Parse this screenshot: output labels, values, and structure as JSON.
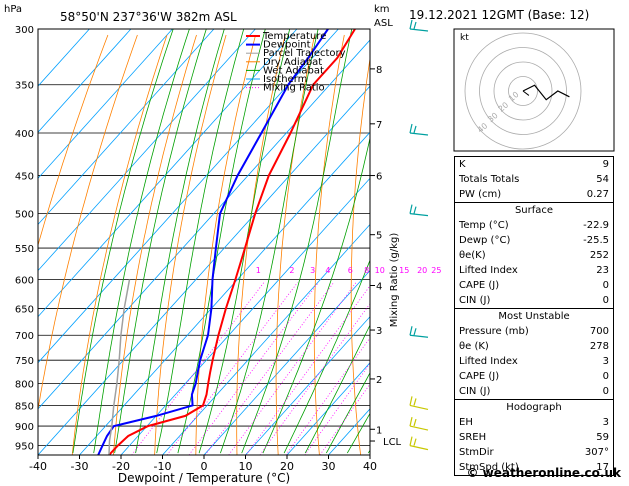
{
  "header": {
    "pressure_unit": "hPa",
    "location": "58°50'N  237°36'W  382m  ASL",
    "km_unit": "km",
    "asl_unit": "ASL",
    "datetime": "19.12.2021  12GMT  (Base: 12)"
  },
  "chart_data": {
    "type": "line",
    "title": "58°50'N 237°36'W 382m ASL",
    "xlabel": "Dewpoint / Temperature (°C)",
    "ylabel": "hPa",
    "right_label": "Mixing Ratio (g/kg)",
    "xlim": [
      -40,
      40
    ],
    "ylim": [
      975,
      300
    ],
    "x_ticks": [
      -40,
      -30,
      -20,
      -10,
      0,
      10,
      20,
      30,
      40
    ],
    "pressure_levels": [
      300,
      350,
      400,
      450,
      500,
      550,
      600,
      650,
      700,
      750,
      800,
      850,
      900,
      950
    ],
    "km_ticks": [
      {
        "label": "1",
        "p": 908
      },
      {
        "label": "2",
        "p": 790
      },
      {
        "label": "3",
        "p": 690
      },
      {
        "label": "4",
        "p": 610
      },
      {
        "label": "5",
        "p": 530
      },
      {
        "label": "6",
        "p": 450
      },
      {
        "label": "7",
        "p": 390
      },
      {
        "label": "8",
        "p": 335
      }
    ],
    "lcl": {
      "label": "LCL",
      "p": 938
    },
    "mixing_ratio_labels": [
      "1",
      "2",
      "3",
      "4",
      "6",
      "8",
      "10",
      "15",
      "20",
      "25"
    ],
    "mixing_ratio_values": [
      1,
      2,
      3,
      4,
      6,
      8,
      10,
      15,
      20,
      25
    ],
    "legend": [
      {
        "name": "Temperature",
        "color": "#ff0000"
      },
      {
        "name": "Dewpoint",
        "color": "#0000ff"
      },
      {
        "name": "Parcel Trajectory",
        "color": "#a0a0a0"
      },
      {
        "name": "Dry Adiabat",
        "color": "#ff8000"
      },
      {
        "name": "Wet Adiabat",
        "color": "#00a000"
      },
      {
        "name": "Isotherm",
        "color": "#00a0ff"
      },
      {
        "name": "Mixing Ratio",
        "color": "#ff00ff"
      }
    ],
    "series": [
      {
        "name": "Temperature",
        "color": "#ff0000",
        "points": [
          [
            975,
            -22.9
          ],
          [
            950,
            -22.8
          ],
          [
            925,
            -22.4
          ],
          [
            900,
            -19.8
          ],
          [
            875,
            -13
          ],
          [
            850,
            -11
          ],
          [
            825,
            -12.5
          ],
          [
            800,
            -14.5
          ],
          [
            775,
            -16.5
          ],
          [
            750,
            -18.5
          ],
          [
            700,
            -22.5
          ],
          [
            650,
            -26.5
          ],
          [
            600,
            -30.5
          ],
          [
            550,
            -35
          ],
          [
            500,
            -40
          ],
          [
            450,
            -45
          ],
          [
            400,
            -49
          ],
          [
            350,
            -54
          ],
          [
            325,
            -54
          ],
          [
            300,
            -56
          ]
        ]
      },
      {
        "name": "Dewpoint",
        "color": "#0000ff",
        "points": [
          [
            975,
            -25.5
          ],
          [
            950,
            -26.5
          ],
          [
            925,
            -27.5
          ],
          [
            900,
            -28
          ],
          [
            875,
            -20
          ],
          [
            850,
            -13.5
          ],
          [
            825,
            -16
          ],
          [
            800,
            -17.5
          ],
          [
            775,
            -19.5
          ],
          [
            750,
            -21.5
          ],
          [
            700,
            -25
          ],
          [
            650,
            -30
          ],
          [
            600,
            -36
          ],
          [
            550,
            -42
          ],
          [
            500,
            -48.5
          ],
          [
            450,
            -52.5
          ],
          [
            400,
            -56
          ],
          [
            350,
            -60
          ],
          [
            325,
            -61
          ],
          [
            300,
            -62.5
          ]
        ]
      },
      {
        "name": "Parcel Trajectory",
        "color": "#a0a0a0",
        "points": [
          [
            975,
            -22.9
          ],
          [
            938,
            -25.8
          ],
          [
            900,
            -28.5
          ],
          [
            850,
            -32.5
          ],
          [
            800,
            -36.5
          ],
          [
            750,
            -41
          ],
          [
            700,
            -46
          ],
          [
            650,
            -51
          ],
          [
            600,
            -56
          ]
        ]
      }
    ],
    "wind_barbs": [
      300,
      400,
      500,
      700,
      850,
      900,
      950
    ]
  },
  "hodograph": {
    "unit": "kt",
    "ring_labels": [
      "40",
      "30",
      "20",
      "10"
    ],
    "ring_speeds": [
      10,
      20,
      30,
      40
    ],
    "trace": [
      [
        0,
        0
      ],
      [
        4,
        -2
      ],
      [
        8,
        3
      ],
      [
        12,
        0
      ],
      [
        16,
        2
      ]
    ],
    "storm_speed": 17,
    "storm_dir": 307
  },
  "indices": {
    "rows": [
      {
        "label": "K",
        "value": "9"
      },
      {
        "label": "Totals Totals",
        "value": "54"
      },
      {
        "label": "PW (cm)",
        "value": "0.27"
      }
    ]
  },
  "surface": {
    "title": "Surface",
    "rows": [
      {
        "label": "Temp (°C)",
        "value": "-22.9"
      },
      {
        "label": "Dewp (°C)",
        "value": "-25.5"
      },
      {
        "label": "θe(K)",
        "value": "252"
      },
      {
        "label": "Lifted Index",
        "value": "23"
      },
      {
        "label": "CAPE (J)",
        "value": "0"
      },
      {
        "label": "CIN (J)",
        "value": "0"
      }
    ]
  },
  "most_unstable": {
    "title": "Most Unstable",
    "rows": [
      {
        "label": "Pressure (mb)",
        "value": "700"
      },
      {
        "label": "θe (K)",
        "value": "278"
      },
      {
        "label": "Lifted Index",
        "value": "3"
      },
      {
        "label": "CAPE (J)",
        "value": "0"
      },
      {
        "label": "CIN (J)",
        "value": "0"
      }
    ]
  },
  "hodograph_table": {
    "title": "Hodograph",
    "rows": [
      {
        "label": "EH",
        "value": "3"
      },
      {
        "label": "SREH",
        "value": "59"
      },
      {
        "label": "StmDir",
        "value": "307°"
      },
      {
        "label": "StmSpd (kt)",
        "value": "17"
      }
    ]
  },
  "footer": {
    "copyright": "© weatheronline.co.uk"
  },
  "colors": {
    "temperature": "#ff0000",
    "dewpoint": "#0000ff",
    "parcel": "#a0a0a0",
    "dry_adiabat": "#ff8000",
    "wet_adiabat": "#00a000",
    "isotherm": "#00a0ff",
    "mixing_ratio": "#ff00ff"
  }
}
